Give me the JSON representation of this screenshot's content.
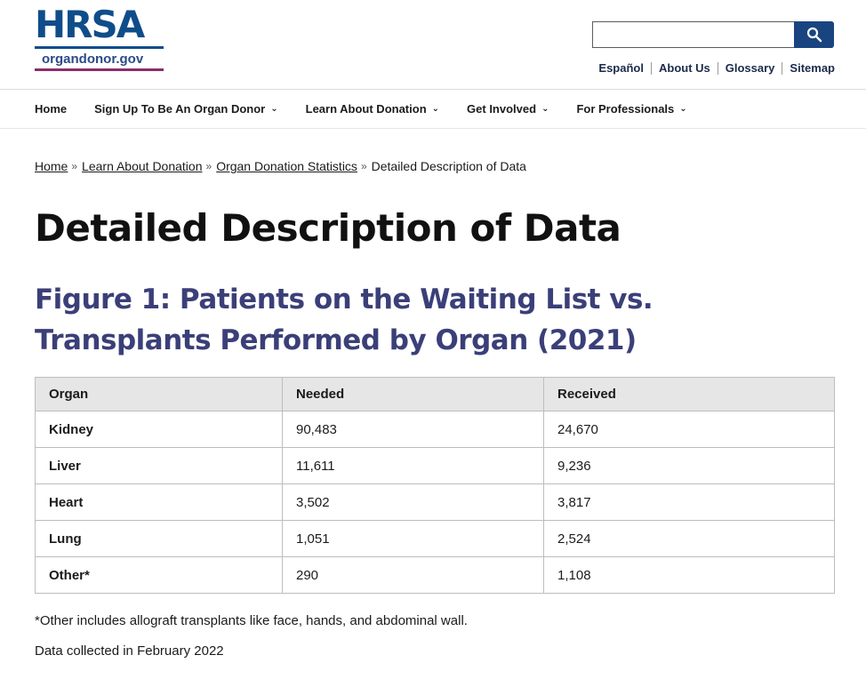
{
  "brand": {
    "name": "HRSA",
    "site": "organdonor.gov"
  },
  "utility_links": [
    "Español",
    "About Us",
    "Glossary",
    "Sitemap"
  ],
  "nav": {
    "items": [
      {
        "label": "Home",
        "dropdown": false
      },
      {
        "label": "Sign Up To Be An Organ Donor",
        "dropdown": true
      },
      {
        "label": "Learn About Donation",
        "dropdown": true
      },
      {
        "label": "Get Involved",
        "dropdown": true
      },
      {
        "label": "For Professionals",
        "dropdown": true
      }
    ]
  },
  "breadcrumb": [
    "Home",
    "Learn About Donation",
    "Organ Donation Statistics",
    "Detailed Description of Data"
  ],
  "page_title": "Detailed Description of Data",
  "figure_title": "Figure 1: Patients on the Waiting List vs. Transplants Performed by Organ (2021)",
  "table": {
    "headers": [
      "Organ",
      "Needed",
      "Received"
    ],
    "rows": [
      [
        "Kidney",
        "90,483",
        "24,670"
      ],
      [
        "Liver",
        "11,611",
        "9,236"
      ],
      [
        "Heart",
        "3,502",
        "3,817"
      ],
      [
        "Lung",
        "1,051",
        "2,524"
      ],
      [
        "Other*",
        "290",
        "1,108"
      ]
    ]
  },
  "note": "*Other includes allograft transplants like face, hands, and abdominal wall.",
  "collected": "Data collected in February 2022",
  "colors": {
    "brand_blue": "#0f4d8a",
    "accent_purple": "#8b2d6b",
    "heading": "#3b3f78",
    "search_button": "#1a4480"
  },
  "icons": {
    "search": "search-icon",
    "dropdown": "chevron-down-icon"
  }
}
